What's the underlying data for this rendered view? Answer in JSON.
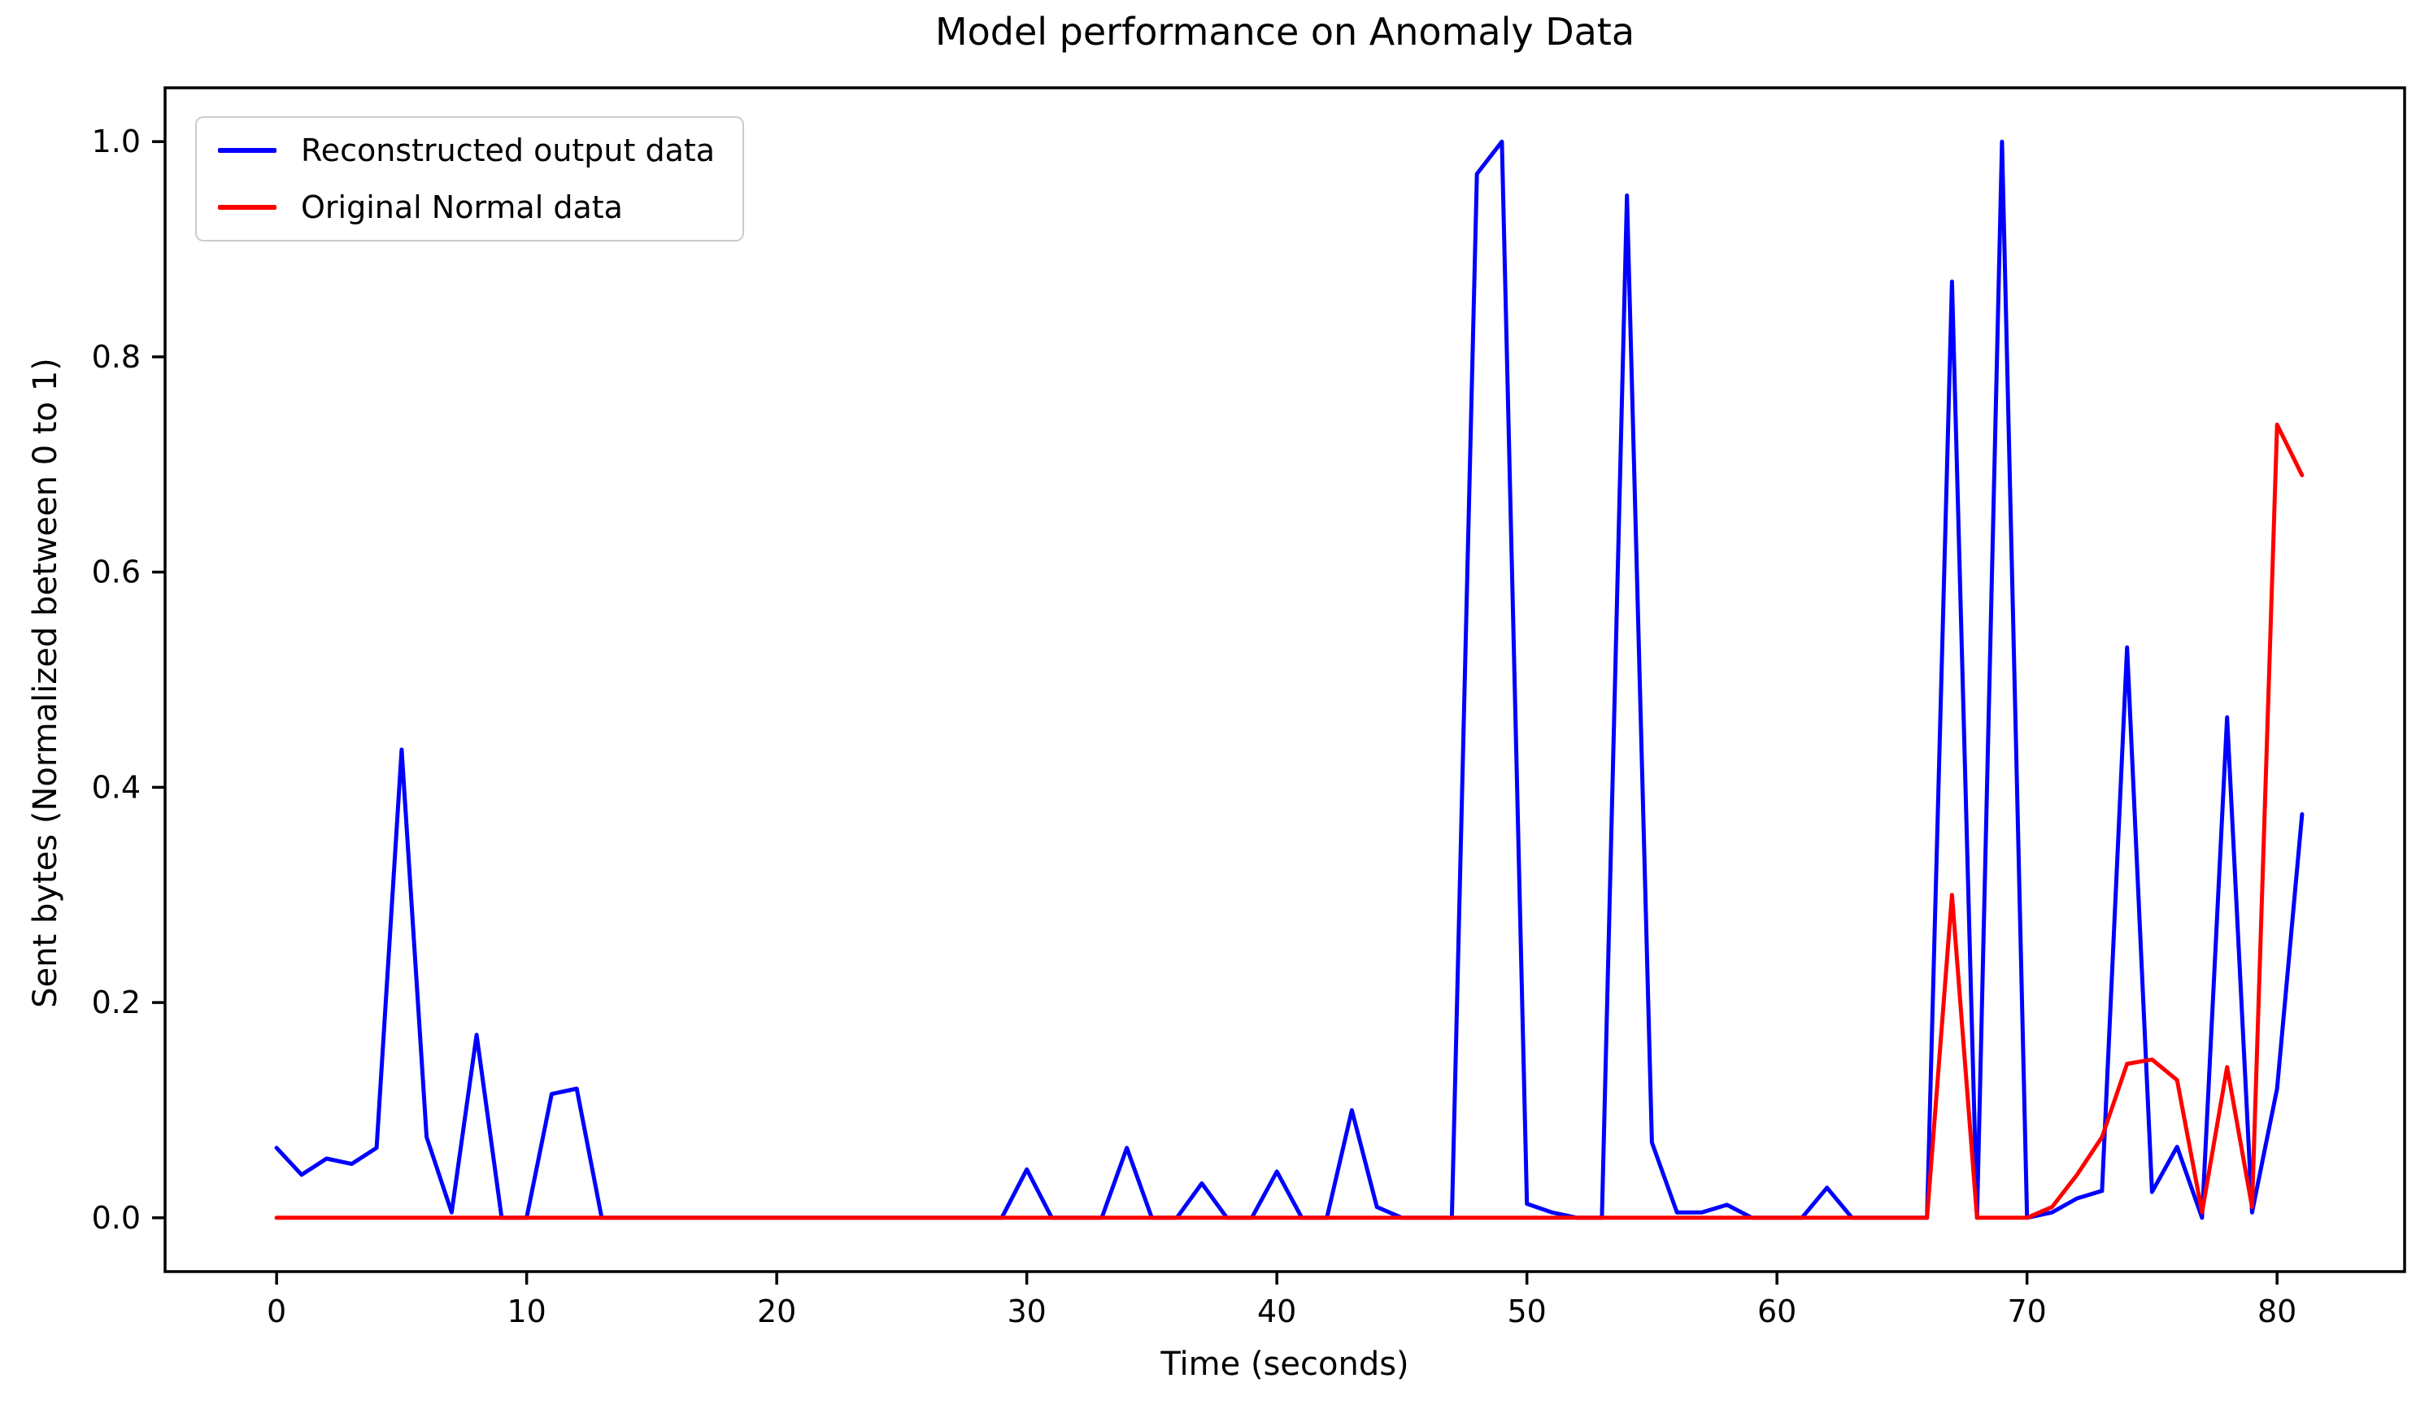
{
  "figure": {
    "title": "Model performance on Anomaly Data",
    "xlabel": "Time (seconds)",
    "ylabel": "Sent bytes (Normalized between 0 to 1)"
  },
  "legend": {
    "items": [
      {
        "label": "Reconstructed output data",
        "color": "#0000ff"
      },
      {
        "label": "Original Normal data",
        "color": "#ff0000"
      }
    ]
  },
  "colors": {
    "reconstructed": "#0000ff",
    "original": "#ff0000",
    "axes": "#000000",
    "legend_border": "#cccccc",
    "background": "#ffffff"
  },
  "chart_data": {
    "type": "line",
    "title": "Model performance on Anomaly Data",
    "xlabel": "Time (seconds)",
    "ylabel": "Sent bytes (Normalized between 0 to 1)",
    "grid": false,
    "legend_position": "upper left",
    "xlim": [
      -4.46,
      85.1
    ],
    "ylim": [
      -0.05,
      1.05
    ],
    "x_ticks": [
      0,
      10,
      20,
      30,
      40,
      50,
      60,
      70,
      80
    ],
    "y_ticks": [
      "0.0",
      "0.2",
      "0.4",
      "0.6",
      "0.8",
      "1.0"
    ],
    "x": [
      0,
      1,
      2,
      3,
      4,
      5,
      6,
      7,
      8,
      9,
      10,
      11,
      12,
      13,
      14,
      15,
      16,
      17,
      18,
      19,
      20,
      21,
      22,
      23,
      24,
      25,
      26,
      27,
      28,
      29,
      30,
      31,
      32,
      33,
      34,
      35,
      36,
      37,
      38,
      39,
      40,
      41,
      42,
      43,
      44,
      45,
      46,
      47,
      48,
      49,
      50,
      51,
      52,
      53,
      54,
      55,
      56,
      57,
      58,
      59,
      60,
      61,
      62,
      63,
      64,
      65,
      66,
      67,
      68,
      69,
      70,
      71,
      72,
      73,
      74,
      75,
      76,
      77,
      78,
      79,
      80,
      81
    ],
    "series": [
      {
        "name": "Reconstructed output data",
        "color": "#0000ff",
        "values": [
          0.065,
          0.04,
          0.055,
          0.05,
          0.065,
          0.435,
          0.075,
          0.005,
          0.17,
          0.0,
          0.0,
          0.115,
          0.12,
          0.0,
          0.0,
          0.0,
          0.0,
          0.0,
          0.0,
          0.0,
          0.0,
          0.0,
          0.0,
          0.0,
          0.0,
          0.0,
          0.0,
          0.0,
          0.0,
          0.0,
          0.045,
          0.0,
          0.0,
          0.0,
          0.065,
          0.0,
          0.0,
          0.032,
          0.0,
          0.0,
          0.043,
          0.0,
          0.0,
          0.1,
          0.01,
          0.0,
          0.0,
          0.0,
          0.97,
          1.0,
          0.013,
          0.005,
          0.0,
          0.0,
          0.95,
          0.07,
          0.005,
          0.005,
          0.012,
          0.0,
          0.0,
          0.0,
          0.028,
          0.0,
          0.0,
          0.0,
          0.0,
          0.87,
          0.0,
          1.0,
          0.0,
          0.005,
          0.018,
          0.025,
          0.53,
          0.024,
          0.066,
          0.0,
          0.465,
          0.005,
          0.12,
          0.375
        ]
      },
      {
        "name": "Original Normal data",
        "color": "#ff0000",
        "values": [
          0.0,
          0.0,
          0.0,
          0.0,
          0.0,
          0.0,
          0.0,
          0.0,
          0.0,
          0.0,
          0.0,
          0.0,
          0.0,
          0.0,
          0.0,
          0.0,
          0.0,
          0.0,
          0.0,
          0.0,
          0.0,
          0.0,
          0.0,
          0.0,
          0.0,
          0.0,
          0.0,
          0.0,
          0.0,
          0.0,
          0.0,
          0.0,
          0.0,
          0.0,
          0.0,
          0.0,
          0.0,
          0.0,
          0.0,
          0.0,
          0.0,
          0.0,
          0.0,
          0.0,
          0.0,
          0.0,
          0.0,
          0.0,
          0.0,
          0.0,
          0.0,
          0.0,
          0.0,
          0.0,
          0.0,
          0.0,
          0.0,
          0.0,
          0.0,
          0.0,
          0.0,
          0.0,
          0.0,
          0.0,
          0.0,
          0.0,
          0.0,
          0.3,
          0.0,
          0.0,
          0.0,
          0.01,
          0.04,
          0.075,
          0.143,
          0.147,
          0.128,
          0.005,
          0.14,
          0.01,
          0.737,
          0.69
        ]
      }
    ]
  }
}
